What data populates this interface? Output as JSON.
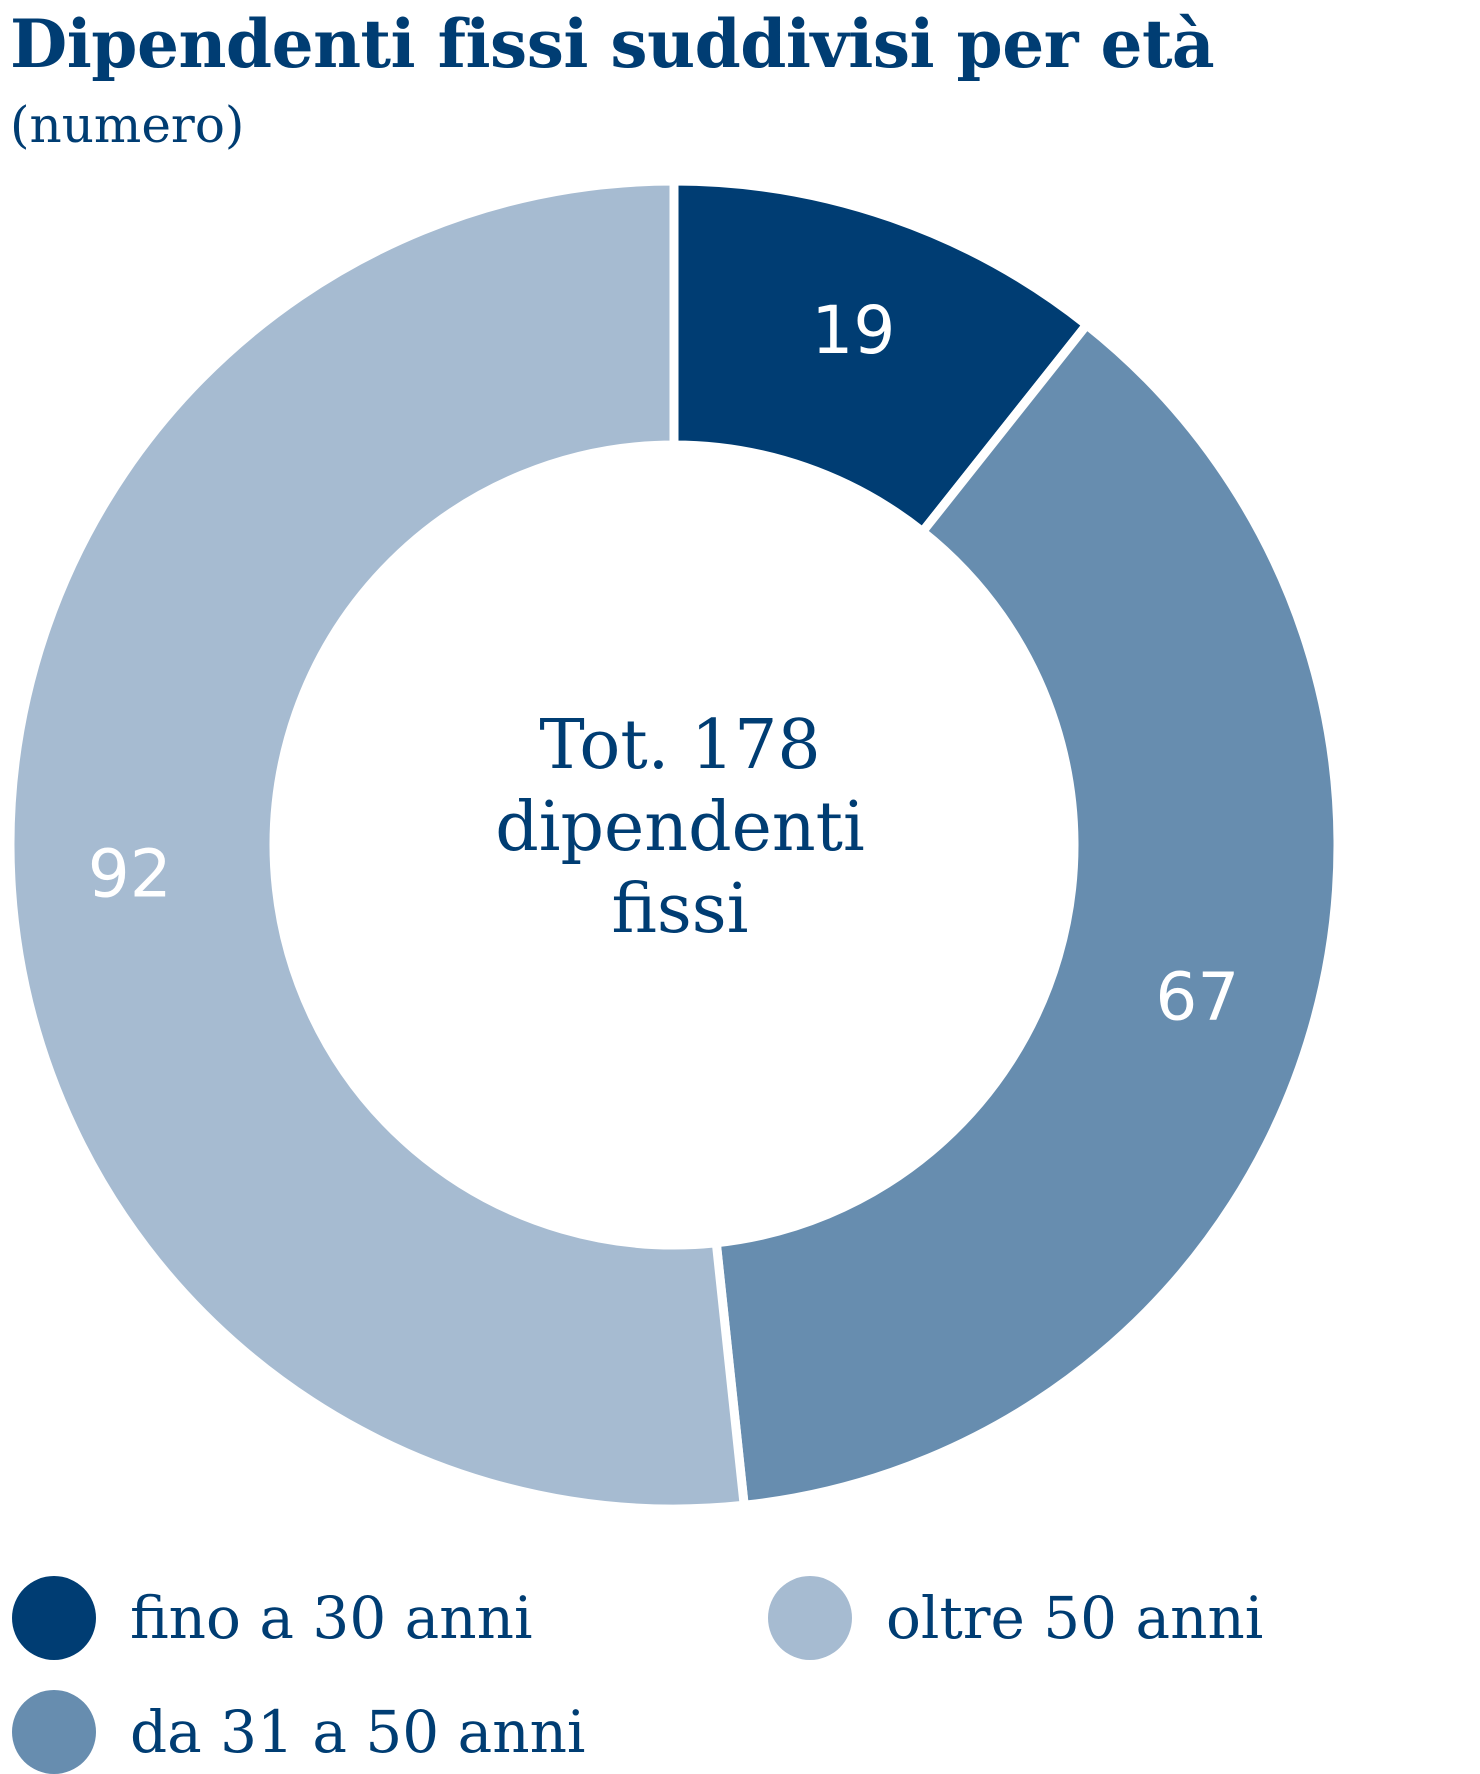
{
  "title": "Dipendenti fissi suddivisi per età",
  "subtitle": "(numero)",
  "center_label": {
    "line1": "Tot. 178",
    "line2": "dipendenti",
    "line3": "fissi"
  },
  "colors": {
    "text": "#003d73",
    "slice_light_text": "#ffffff"
  },
  "chart_data": {
    "type": "pie",
    "donut": true,
    "title": "Dipendenti fissi suddivisi per età",
    "subtitle": "(numero)",
    "total": 178,
    "slices": [
      {
        "label": "fino a 30 anni",
        "value": 19,
        "color": "#003d73"
      },
      {
        "label": "da 31 a 50 anni",
        "value": 67,
        "color": "#678daf"
      },
      {
        "label": "oltre 50 anni",
        "value": 92,
        "color": "#a6bbd1"
      }
    ],
    "legend_placement": "bottom"
  }
}
